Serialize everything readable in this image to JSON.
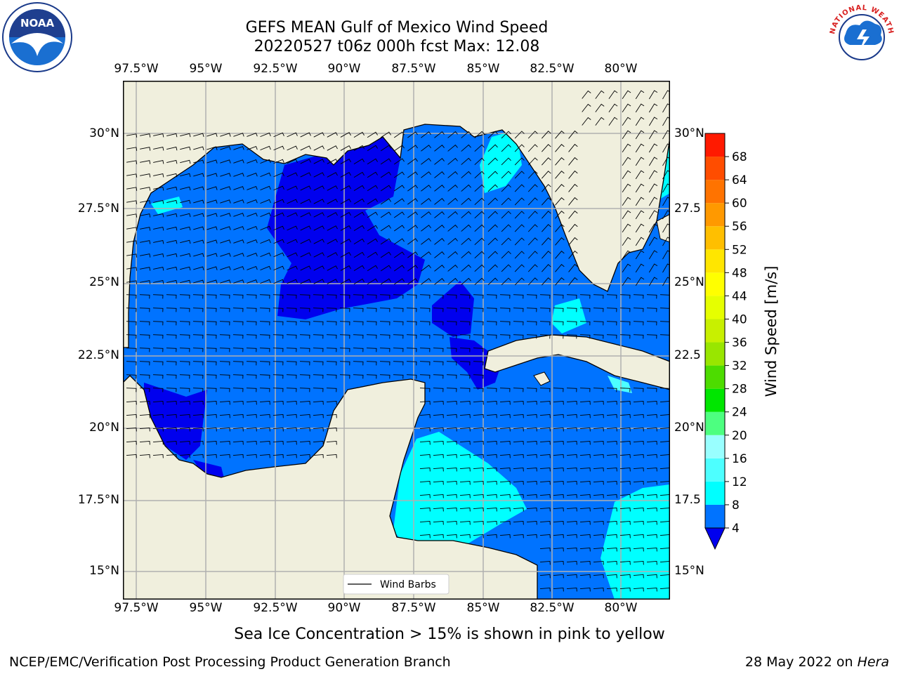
{
  "header": {
    "title_line1": "GEFS MEAN Gulf of Mexico Wind Speed",
    "title_line2": "20220527 t06z 000h fcst   Max: 12.08"
  },
  "logos": {
    "left_logo_text": "NOAA",
    "right_logo_text": "NATIONAL WEATHER SERVICE"
  },
  "map": {
    "lon_labels": [
      "97.5°W",
      "95°W",
      "92.5°W",
      "90°W",
      "87.5°W",
      "85°W",
      "82.5°W",
      "80°W"
    ],
    "lat_labels": [
      "30°N",
      "27.5°N",
      "25°N",
      "22.5°N",
      "20°N",
      "17.5°N",
      "15°N"
    ],
    "right_lat_labels": [
      "30°N",
      "27.5",
      "25°N",
      "22.5",
      "20°N",
      "17.5",
      "15°N"
    ],
    "extent": {
      "lon_min": -98.0,
      "lon_max": -78.3,
      "lat_min": 14.0,
      "lat_max": 31.6
    },
    "legend_label": "Wind Barbs",
    "colors": {
      "land": "#f0efdd",
      "deep_blue": "#0000ee",
      "blue": "#0073ff",
      "cyan": "#00ffff",
      "light_cyan": "#4dffff",
      "grid": "#b0b0b0"
    }
  },
  "colorbar": {
    "label": "Wind Speed [m/s]",
    "ticks": [
      "4",
      "8",
      "12",
      "16",
      "20",
      "24",
      "28",
      "32",
      "36",
      "40",
      "44",
      "48",
      "52",
      "56",
      "60",
      "64",
      "68"
    ],
    "colors": [
      "#0073ff",
      "#00ffff",
      "#4dffff",
      "#99ffff",
      "#4dff80",
      "#00e600",
      "#4ddc00",
      "#99e600",
      "#c8f000",
      "#e6ff00",
      "#ffff00",
      "#ffe600",
      "#ffbf00",
      "#ff9900",
      "#ff7300",
      "#ff4d00",
      "#ff1a00"
    ],
    "extend_color": "#0000ee"
  },
  "footer": {
    "note": "Sea Ice Concentration > 15% is shown in pink to yellow",
    "credit": "NCEP/EMC/Verification Post Processing Product Generation Branch",
    "date": "28 May 2022 on",
    "machine": "Hera"
  }
}
